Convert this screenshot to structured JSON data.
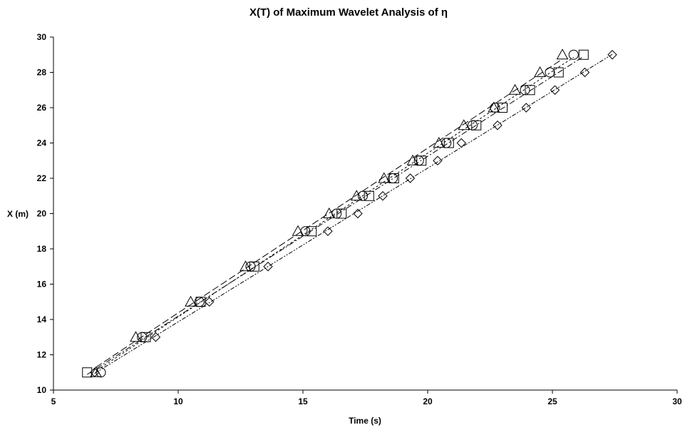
{
  "chart_data": {
    "type": "scatter",
    "title": "X(T) of Maximum Wavelet Analysis of η",
    "xlabel": "Time (s)",
    "ylabel": "X (m)",
    "xlim": [
      5,
      30
    ],
    "ylim": [
      10,
      30
    ],
    "xticks": [
      5,
      10,
      15,
      20,
      25,
      30
    ],
    "yticks": [
      10,
      12,
      14,
      16,
      18,
      20,
      22,
      24,
      26,
      28,
      30
    ],
    "grid": false,
    "series": [
      {
        "marker": "square",
        "dash": "8,3,2,3",
        "x": [
          6.35,
          8.7,
          10.9,
          13.05,
          15.35,
          16.55,
          17.65,
          18.65,
          19.75,
          20.85,
          21.95,
          23.0,
          24.1,
          25.25,
          26.25
        ],
        "y": [
          11,
          13,
          15,
          17,
          19,
          20,
          21,
          22,
          23,
          24,
          25,
          26,
          27,
          28,
          29
        ]
      },
      {
        "marker": "circle",
        "dash": "3,3",
        "x": [
          6.9,
          8.55,
          10.85,
          12.9,
          15.1,
          16.35,
          17.4,
          18.6,
          19.65,
          20.75,
          21.8,
          22.7,
          23.9,
          24.9,
          25.85
        ],
        "y": [
          11,
          13,
          15,
          17,
          19,
          20,
          21,
          22,
          23,
          24,
          25,
          26,
          27,
          28,
          29
        ]
      },
      {
        "marker": "triangle",
        "dash": "10,4",
        "x": [
          6.7,
          8.3,
          10.5,
          12.7,
          14.8,
          16.05,
          17.15,
          18.25,
          19.4,
          20.45,
          21.45,
          22.65,
          23.5,
          24.5,
          25.4
        ],
        "y": [
          11,
          13,
          15,
          17,
          19,
          20,
          21,
          22,
          23,
          24,
          25,
          26,
          27,
          28,
          29
        ]
      },
      {
        "marker": "diamond",
        "dash": "6,2,2,2,2,2",
        "x": [
          6.65,
          9.1,
          11.25,
          13.6,
          16.0,
          17.2,
          18.2,
          19.3,
          20.4,
          21.35,
          22.8,
          23.95,
          25.1,
          26.3,
          27.4
        ],
        "y": [
          11,
          13,
          15,
          17,
          19,
          20,
          21,
          22,
          23,
          24,
          25,
          26,
          27,
          28,
          29
        ]
      }
    ]
  }
}
